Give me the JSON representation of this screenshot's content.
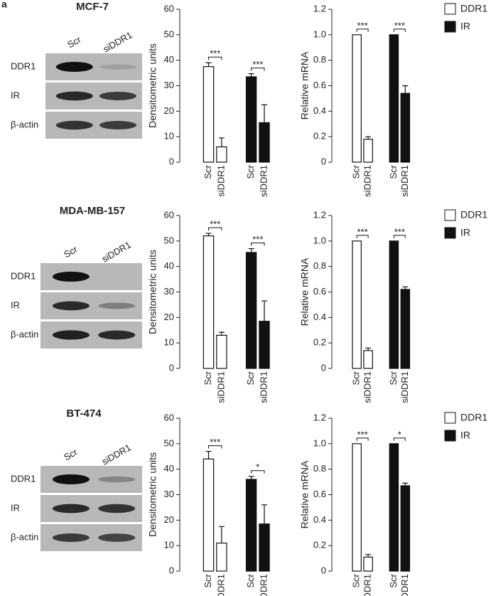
{
  "panel_label": "a",
  "blots": [
    {
      "title": "MCF-7",
      "lanes": [
        "Scr",
        "siDDR1"
      ],
      "rows": [
        "DDR1",
        "IR",
        "β-actin"
      ]
    },
    {
      "title": "MDA-MB-157",
      "lanes": [
        "Scr",
        "siDDR1"
      ],
      "rows": [
        "DDR1",
        "IR",
        "β-actin"
      ]
    },
    {
      "title": "BT-474",
      "lanes": [
        "Scr",
        "siDDR1"
      ],
      "rows": [
        "DDR1",
        "IR",
        "β-actin"
      ]
    }
  ],
  "chart_data": [
    {
      "type": "bar",
      "ylabel": "Densitometric units",
      "categories": [
        "Scr",
        "siDDR1"
      ],
      "series": [
        {
          "color": "#ffffff",
          "values": [
            37.5,
            6
          ],
          "errors": [
            1.5,
            3.5
          ],
          "significance": "***"
        },
        {
          "color": "#111111",
          "values": [
            33.5,
            15.5
          ],
          "errors": [
            1.2,
            7
          ],
          "significance": "***"
        }
      ],
      "ylim": [
        0,
        60
      ],
      "yticks": [
        0,
        10,
        20,
        30,
        40,
        50,
        60
      ]
    },
    {
      "type": "bar",
      "ylabel": "Relative mRNA",
      "categories": [
        "Scr",
        "siDDR1"
      ],
      "series": [
        {
          "name": "DDR1",
          "color": "#ffffff",
          "values": [
            1,
            0.18
          ],
          "errors": [
            null,
            0.02
          ],
          "significance": "***"
        },
        {
          "name": "IR",
          "color": "#111111",
          "values": [
            1,
            0.54
          ],
          "errors": [
            null,
            0.06
          ],
          "significance": "***"
        }
      ],
      "ylim": [
        0,
        1.2
      ],
      "yticks": [
        0,
        0.2,
        0.4,
        0.6,
        0.8,
        {
          "value": 1,
          "label": "1.0"
        },
        1.2
      ],
      "legend": "right"
    },
    {
      "type": "bar",
      "ylabel": "Densitometric units",
      "categories": [
        "Scr",
        "siDDR1"
      ],
      "series": [
        {
          "color": "#ffffff",
          "values": [
            52,
            13
          ],
          "errors": [
            1,
            1.2
          ],
          "significance": "***"
        },
        {
          "color": "#111111",
          "values": [
            45.5,
            18.5
          ],
          "errors": [
            1.5,
            8
          ],
          "significance": "***"
        }
      ],
      "ylim": [
        0,
        60
      ],
      "yticks": [
        0,
        10,
        20,
        30,
        40,
        50,
        60
      ]
    },
    {
      "type": "bar",
      "ylabel": "Relative mRNA",
      "categories": [
        "Scr",
        "siDDR1"
      ],
      "series": [
        {
          "name": "DDR1",
          "color": "#ffffff",
          "values": [
            1,
            0.14
          ],
          "errors": [
            null,
            0.02
          ],
          "significance": "***"
        },
        {
          "name": "IR",
          "color": "#111111",
          "values": [
            1,
            0.62
          ],
          "errors": [
            null,
            0.02
          ],
          "significance": "***"
        }
      ],
      "ylim": [
        0,
        1.2
      ],
      "yticks": [
        0,
        0.2,
        0.4,
        0.6,
        0.8,
        {
          "value": 1,
          "label": "1.0"
        },
        1.2
      ],
      "legend": "right"
    },
    {
      "type": "bar",
      "ylabel": "Densitometric units",
      "categories": [
        "Scr",
        "siDDR1"
      ],
      "series": [
        {
          "color": "#ffffff",
          "values": [
            44,
            11
          ],
          "errors": [
            3,
            6.5
          ],
          "significance": "***"
        },
        {
          "color": "#111111",
          "values": [
            36,
            18.5
          ],
          "errors": [
            1.2,
            7.5
          ],
          "significance": "*"
        }
      ],
      "ylim": [
        0,
        60
      ],
      "yticks": [
        0,
        10,
        20,
        30,
        40,
        50,
        60
      ]
    },
    {
      "type": "bar",
      "ylabel": "Relative mRNA",
      "categories": [
        "Scr",
        "siDDR1"
      ],
      "series": [
        {
          "name": "DDR1",
          "color": "#ffffff",
          "values": [
            1,
            0.11
          ],
          "errors": [
            null,
            0.02
          ],
          "significance": "***"
        },
        {
          "name": "IR",
          "color": "#111111",
          "values": [
            1,
            0.67
          ],
          "errors": [
            null,
            0.02
          ],
          "significance": "*"
        }
      ],
      "ylim": [
        0,
        1.2
      ],
      "yticks": [
        0,
        0.2,
        0.4,
        0.6,
        0.8,
        {
          "value": 1,
          "label": "1.0"
        },
        1.2
      ],
      "legend": "right"
    }
  ]
}
